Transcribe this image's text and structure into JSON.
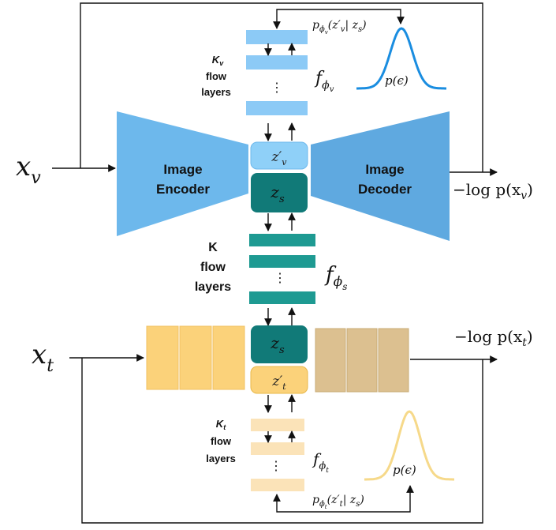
{
  "colors": {
    "image_flow": "#8ccaf6",
    "encoder": "#6db8ec",
    "decoder": "#5fa9e0",
    "zv_prime": "#8fd0f8",
    "zs": "#117a78",
    "shared_flow": "#1e9a92",
    "text_encoder": "#fbd27a",
    "text_decoder": "#dcc090",
    "zt_prime": "#fbd27a",
    "text_flow": "#fbe3b8",
    "gauss_top": "#1a8de0",
    "gauss_bottom": "#f6d98a"
  },
  "image_branch": {
    "input_label": "x",
    "input_sub": "v",
    "encoder_line1": "Image",
    "encoder_line2": "Encoder",
    "decoder_line1": "Image",
    "decoder_line2": "Decoder",
    "loss_label": "−log p(x",
    "loss_sub": "v",
    "loss_close": ")",
    "flow_count": "K",
    "flow_count_sub": "v",
    "flow_word": "flow",
    "layers_word": "layers",
    "flow_fn": "f",
    "flow_fn_sub": "ϕ",
    "flow_fn_subsub": "v",
    "prior_label": "p(ϵ)",
    "posterior_label": "p",
    "posterior_sub": "ϕ",
    "posterior_subsub": "v",
    "posterior_args": "(z′",
    "posterior_args_sub": "v",
    "posterior_args_rest": "| z",
    "posterior_args_rest_sub": "s",
    "posterior_close": ")",
    "latent_prime": "z′",
    "latent_prime_sub": "v"
  },
  "shared": {
    "latent": "z",
    "latent_sub": "s",
    "flow_count": "K",
    "flow_word": "flow",
    "layers_word": "layers",
    "flow_fn": "f",
    "flow_fn_sub": "ϕ",
    "flow_fn_subsub": "s"
  },
  "text_branch": {
    "input_label": "x",
    "input_sub": "t",
    "loss_label": "−log p(x",
    "loss_sub": "t",
    "loss_close": ")",
    "flow_count": "K",
    "flow_count_sub": "t",
    "flow_word": "flow",
    "layers_word": "layers",
    "flow_fn": "f",
    "flow_fn_sub": "ϕ",
    "flow_fn_subsub": "t",
    "prior_label": "p(ϵ)",
    "posterior_label": "p",
    "posterior_sub": "ϕ",
    "posterior_subsub": "t",
    "posterior_args": "(z′",
    "posterior_args_sub": "t",
    "posterior_args_rest": "| z",
    "posterior_args_rest_sub": "s",
    "posterior_close": ")",
    "latent_prime": "z′",
    "latent_prime_sub": "t"
  },
  "ellipsis": "⋮"
}
